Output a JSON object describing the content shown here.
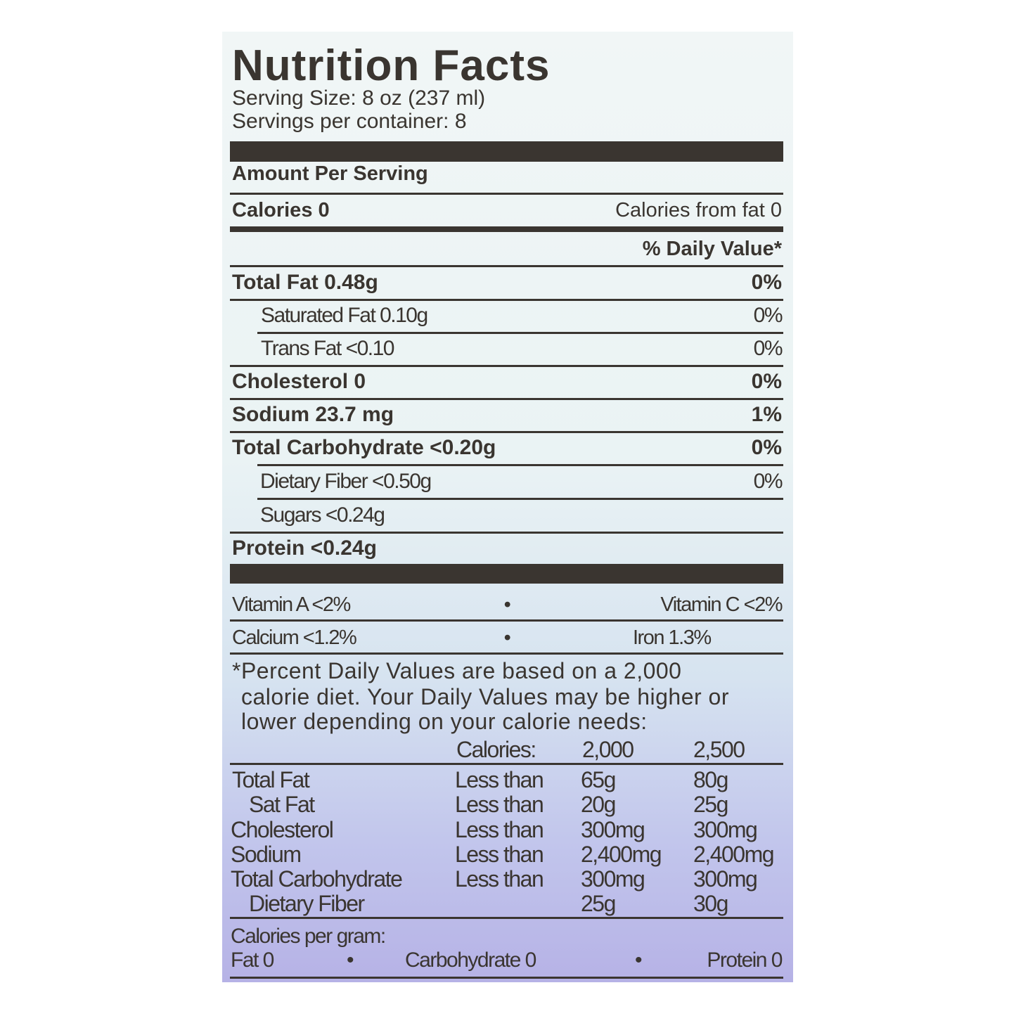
{
  "title": "Nutrition Facts",
  "serving_size": "Serving Size: 8 oz (237 ml)",
  "servings_per_container": "Servings per container: 8",
  "amount_per_serving": "Amount Per Serving",
  "calories": "Calories 0",
  "calories_from_fat": "Calories from fat 0",
  "daily_value_header": "% Daily Value*",
  "nutrients": [
    {
      "label": "Total Fat 0.48g",
      "dv": "0%"
    },
    {
      "label": "Saturated Fat 0.10g",
      "dv": "0%"
    },
    {
      "label": "Trans Fat <0.10",
      "dv": "0%"
    },
    {
      "label": "Cholesterol 0",
      "dv": "0%"
    },
    {
      "label": "Sodium 23.7 mg",
      "dv": "1%"
    },
    {
      "label": "Total Carbohydrate <0.20g",
      "dv": "0%"
    },
    {
      "label": "Dietary Fiber <0.50g",
      "dv": "0%"
    },
    {
      "label": "Sugars <0.24g",
      "dv": ""
    },
    {
      "label": "Protein <0.24g",
      "dv": ""
    }
  ],
  "vitamins": [
    {
      "left": "Vitamin A <2%",
      "right": "Vitamin C <2%"
    },
    {
      "left": "Calcium <1.2%",
      "right": "Iron 1.3%"
    }
  ],
  "footnote": [
    "*Percent Daily Values are based on a 2,000",
    "calorie diet. Your Daily Values may be higher or",
    "lower depending on your calorie needs:"
  ],
  "dv_table": {
    "header": [
      "Calories:",
      "2,000",
      "2,500"
    ],
    "rows": [
      [
        "Total Fat",
        "Less than",
        "65g",
        "80g"
      ],
      [
        "Sat Fat",
        "Less than",
        "20g",
        "25g"
      ],
      [
        "Cholesterol",
        "Less than",
        "300mg",
        "300mg"
      ],
      [
        "Sodium",
        "Less than",
        "2,400mg",
        "2,400mg"
      ],
      [
        "Total Carbohydrate",
        "Less than",
        "300mg",
        "300mg"
      ],
      [
        "Dietary Fiber",
        "",
        "25g",
        "30g"
      ]
    ]
  },
  "calories_per_gram": {
    "label": "Calories per gram:",
    "fat": "Fat 0",
    "carbohydrate": "Carbohydrate 0",
    "protein": "Protein 0",
    "separator": "•"
  }
}
